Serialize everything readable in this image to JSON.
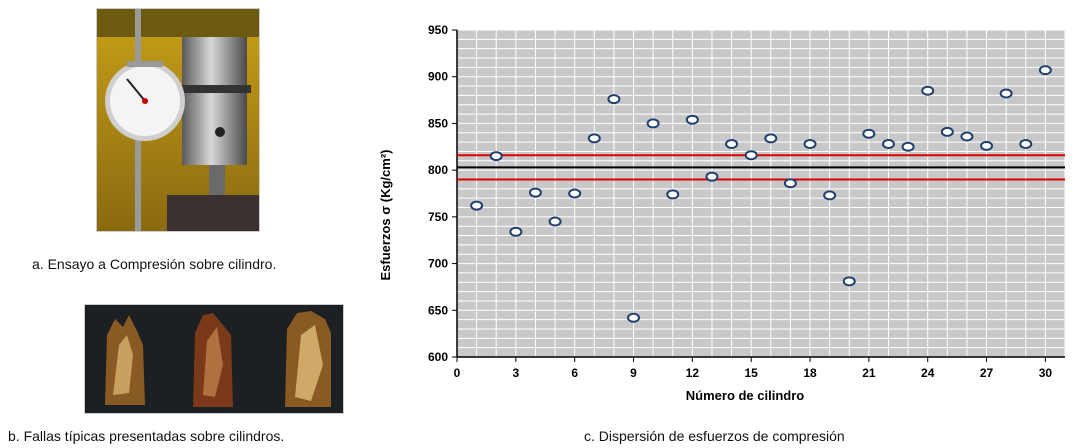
{
  "captions": {
    "a": "a.  Ensayo a Compresión  sobre cilindro.",
    "b": "b. Fallas típicas presentadas  sobre cilindros.",
    "c": "c. Dispersión de esfuerzos de compresión"
  },
  "colors": {
    "plot_bg": "#c8c8c8",
    "grid": "#ffffff",
    "marker_fill": "#ffffff",
    "marker_edge": "#1f3f6f",
    "limit_lines": "#e00000",
    "mean_line": "#000000"
  },
  "chart_data": {
    "type": "scatter",
    "xlabel": "Número de cilindro",
    "ylabel": "Esfuerzos σ (Kg/cm²)",
    "xlim": [
      0,
      31
    ],
    "ylim": [
      600,
      950
    ],
    "xticks": [
      0,
      3,
      6,
      9,
      12,
      15,
      18,
      21,
      24,
      27,
      30
    ],
    "yticks": [
      600,
      650,
      700,
      750,
      800,
      850,
      900,
      950
    ],
    "grid": true,
    "x": [
      1,
      2,
      3,
      4,
      5,
      6,
      7,
      8,
      9,
      10,
      11,
      12,
      13,
      14,
      15,
      16,
      17,
      18,
      19,
      20,
      21,
      22,
      23,
      24,
      25,
      26,
      27,
      28,
      29,
      30
    ],
    "y": [
      762,
      815,
      734,
      776,
      745,
      775,
      834,
      876,
      642,
      850,
      774,
      854,
      793,
      828,
      816,
      834,
      786,
      828,
      773,
      681,
      839,
      828,
      825,
      885,
      841,
      836,
      826,
      882,
      828,
      907
    ],
    "reference_lines": [
      {
        "y": 816,
        "color": "#e00000"
      },
      {
        "y": 803,
        "color": "#000000"
      },
      {
        "y": 790,
        "color": "#e00000"
      }
    ]
  }
}
